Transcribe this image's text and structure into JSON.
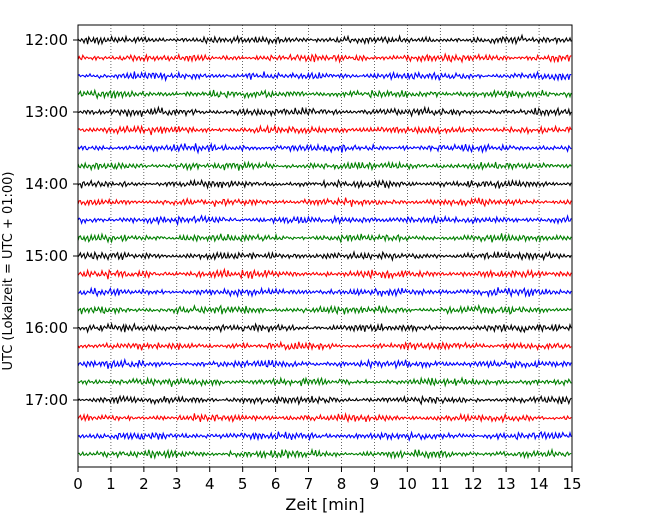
{
  "chart_data": {
    "type": "line",
    "title": "",
    "xlabel": "Zeit  [min]",
    "ylabel": "UTC (Lokalzeit = UTC + 01:00)",
    "xlim": [
      0,
      15
    ],
    "x_ticks": [
      "0",
      "1",
      "2",
      "3",
      "4",
      "5",
      "6",
      "7",
      "8",
      "9",
      "10",
      "11",
      "12",
      "13",
      "14",
      "15"
    ],
    "y_tick_labels": [
      "12:00",
      "13:00",
      "14:00",
      "15:00",
      "16:00",
      "17:00"
    ],
    "start_time": "12:00",
    "end_time": "18:00",
    "trace_interval_min": 15,
    "trace_count": 24,
    "trace_colors": [
      "#000000",
      "#ff0000",
      "#0000ff",
      "#008000"
    ],
    "grid": "vertical dotted lines at each minute"
  }
}
